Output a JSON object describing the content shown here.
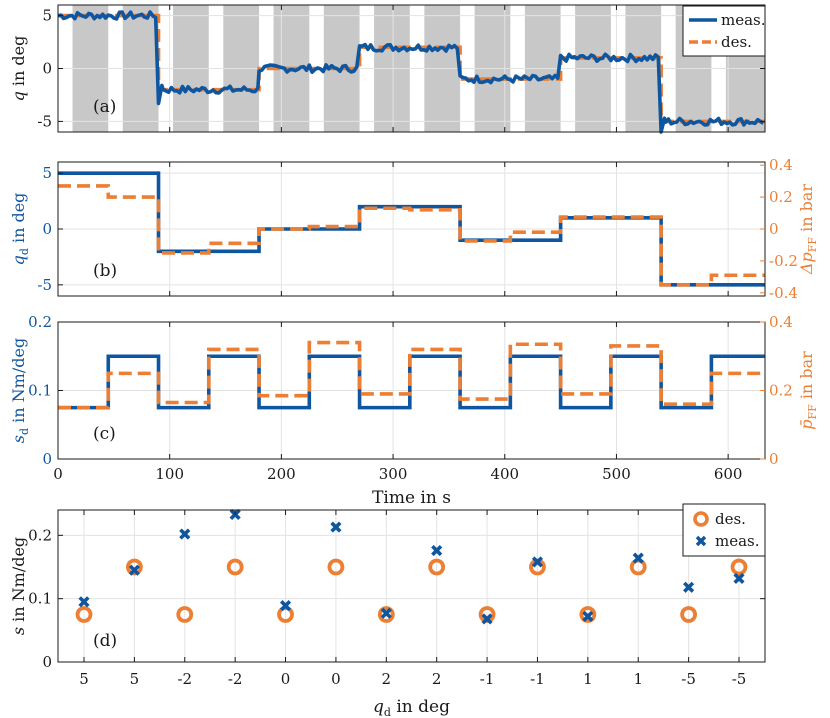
{
  "colors": {
    "meas": "#0f56a0",
    "des": "#ec7f34",
    "shade": "#c8c8c8",
    "grid": "#e3e3e3",
    "axis": "#1a1a1a"
  },
  "chart_data": [
    {
      "id": "a",
      "type": "line",
      "panel_label": "(a)",
      "ylabel": "q in deg",
      "xlim": [
        0,
        633
      ],
      "ylim": [
        -6,
        6
      ],
      "yticks": [
        -5,
        0,
        5
      ],
      "grid": true,
      "legend": {
        "placement": "top-right",
        "entries": [
          "meas.",
          "des."
        ]
      },
      "shaded_intervals": [
        [
          13,
          45
        ],
        [
          58,
          90
        ],
        [
          103,
          135
        ],
        [
          148,
          180
        ],
        [
          193,
          225
        ],
        [
          238,
          270
        ],
        [
          283,
          315
        ],
        [
          328,
          360
        ],
        [
          373,
          405
        ],
        [
          418,
          450
        ],
        [
          463,
          495
        ],
        [
          508,
          540
        ],
        [
          553,
          585
        ],
        [
          598,
          633
        ]
      ],
      "series": [
        {
          "name": "des.",
          "style": "dashed",
          "steps": [
            [
              0,
              5
            ],
            [
              90,
              -2
            ],
            [
              180,
              0
            ],
            [
              270,
              2
            ],
            [
              360,
              -1
            ],
            [
              450,
              1
            ],
            [
              540,
              -5
            ],
            [
              633,
              -5
            ]
          ]
        },
        {
          "name": "meas.",
          "style": "solid",
          "noise": 0.35,
          "steps": [
            [
              0,
              5
            ],
            [
              90,
              -2
            ],
            [
              180,
              0
            ],
            [
              270,
              2
            ],
            [
              360,
              -1
            ],
            [
              450,
              1
            ],
            [
              540,
              -5
            ],
            [
              633,
              -5
            ]
          ],
          "transients": [
            [
              90,
              -3.3
            ],
            [
              540,
              -6
            ]
          ]
        }
      ]
    },
    {
      "id": "b",
      "type": "line",
      "panel_label": "(b)",
      "ylabel": "q_d in deg",
      "ylabel_right": "Δp_FF in bar",
      "xlim": [
        0,
        633
      ],
      "ylim": [
        -6,
        6
      ],
      "yticks": [
        -5,
        0,
        5
      ],
      "ylim_right": [
        -0.42,
        0.42
      ],
      "yticks_right": [
        -0.4,
        -0.2,
        0,
        0.2,
        0.4
      ],
      "ytick_labels_right": [
        "-0.4",
        "-0.2",
        "0",
        "0.2",
        "0.4"
      ],
      "grid": true,
      "series": [
        {
          "name": "q_d",
          "axis": "left",
          "style": "solid",
          "steps": [
            [
              0,
              5
            ],
            [
              90,
              -2
            ],
            [
              180,
              0
            ],
            [
              270,
              2
            ],
            [
              360,
              -1
            ],
            [
              450,
              1
            ],
            [
              540,
              -5
            ],
            [
              633,
              -5
            ]
          ]
        },
        {
          "name": "Δp_FF",
          "axis": "right",
          "style": "dashed",
          "steps": [
            [
              0,
              0.27
            ],
            [
              45,
              0.2
            ],
            [
              90,
              -0.15
            ],
            [
              135,
              -0.09
            ],
            [
              180,
              0.0
            ],
            [
              225,
              0.015
            ],
            [
              270,
              0.13
            ],
            [
              315,
              0.12
            ],
            [
              360,
              -0.075
            ],
            [
              405,
              -0.02
            ],
            [
              450,
              0.075
            ],
            [
              495,
              0.075
            ],
            [
              540,
              -0.35
            ],
            [
              585,
              -0.29
            ],
            [
              633,
              -0.29
            ]
          ]
        }
      ]
    },
    {
      "id": "c",
      "type": "line",
      "panel_label": "(c)",
      "ylabel": "s_d in Nm/deg",
      "ylabel_right": "p̄_FF in bar",
      "xlabel": "Time in s",
      "xlim": [
        0,
        633
      ],
      "xticks": [
        0,
        100,
        200,
        300,
        400,
        500,
        600
      ],
      "ylim": [
        0,
        0.2
      ],
      "yticks": [
        0,
        0.1,
        0.2
      ],
      "ylim_right": [
        0,
        0.4
      ],
      "yticks_right": [
        0,
        0.2,
        0.4
      ],
      "grid": true,
      "series": [
        {
          "name": "s_d",
          "axis": "left",
          "style": "solid",
          "steps": [
            [
              0,
              0.075
            ],
            [
              45,
              0.15
            ],
            [
              90,
              0.075
            ],
            [
              135,
              0.15
            ],
            [
              180,
              0.075
            ],
            [
              225,
              0.15
            ],
            [
              270,
              0.075
            ],
            [
              315,
              0.15
            ],
            [
              360,
              0.075
            ],
            [
              405,
              0.15
            ],
            [
              450,
              0.075
            ],
            [
              495,
              0.15
            ],
            [
              540,
              0.075
            ],
            [
              585,
              0.15
            ],
            [
              633,
              0.15
            ]
          ]
        },
        {
          "name": "p̄_FF",
          "axis": "right",
          "style": "dashed",
          "steps": [
            [
              0,
              0.15
            ],
            [
              45,
              0.25
            ],
            [
              90,
              0.165
            ],
            [
              135,
              0.32
            ],
            [
              180,
              0.185
            ],
            [
              225,
              0.34
            ],
            [
              270,
              0.19
            ],
            [
              315,
              0.32
            ],
            [
              360,
              0.175
            ],
            [
              405,
              0.335
            ],
            [
              450,
              0.19
            ],
            [
              495,
              0.33
            ],
            [
              540,
              0.16
            ],
            [
              585,
              0.25
            ],
            [
              633,
              0.25
            ]
          ]
        }
      ]
    },
    {
      "id": "d",
      "type": "scatter",
      "panel_label": "(d)",
      "ylabel": "s in Nm/deg",
      "xlabel": "q_d in deg",
      "categories": [
        "5",
        "5",
        "-2",
        "-2",
        "0",
        "0",
        "2",
        "2",
        "-1",
        "-1",
        "1",
        "1",
        "-5",
        "-5"
      ],
      "ylim": [
        0,
        0.24
      ],
      "yticks": [
        0,
        0.1,
        0.2
      ],
      "grid": true,
      "legend": {
        "placement": "top-right",
        "entries": [
          "des.",
          "meas."
        ]
      },
      "series": [
        {
          "name": "des.",
          "marker": "circle",
          "values": [
            0.075,
            0.15,
            0.075,
            0.15,
            0.075,
            0.15,
            0.075,
            0.15,
            0.075,
            0.15,
            0.075,
            0.15,
            0.075,
            0.15
          ]
        },
        {
          "name": "meas.",
          "marker": "x",
          "values": [
            0.095,
            0.145,
            0.202,
            0.233,
            0.089,
            0.213,
            0.077,
            0.176,
            0.068,
            0.158,
            0.072,
            0.164,
            0.118,
            0.132
          ]
        }
      ]
    }
  ]
}
